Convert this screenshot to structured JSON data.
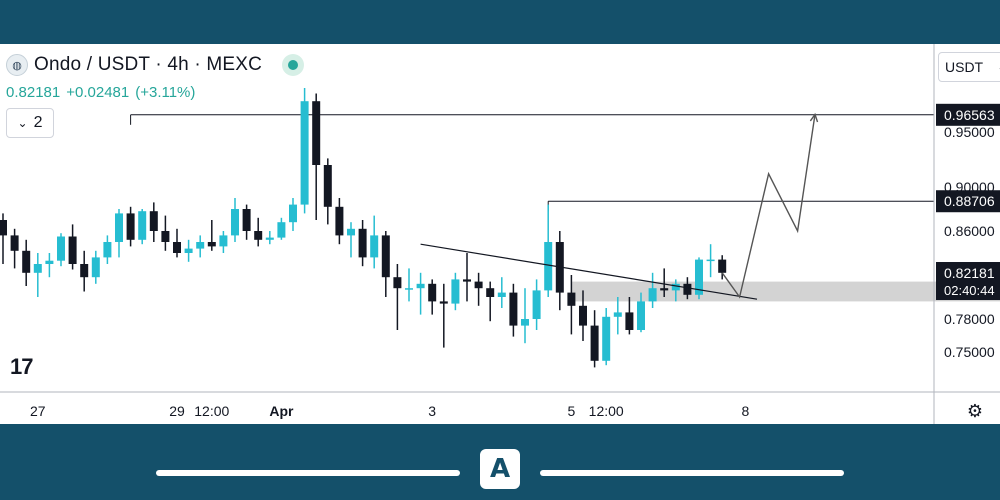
{
  "legend": {
    "title": "Ondo / USDT · 4h · MEXC",
    "last": "0.82181",
    "change": "+0.02481",
    "change_pct": "(+3.11%)",
    "indicator_count": "2"
  },
  "toolbar": {
    "currency": "USDT"
  },
  "brand": {
    "watermark": "17"
  },
  "colors": {
    "up": "#26bdd1",
    "down": "#131722",
    "zone": "#c8c8c8",
    "frame": "#14506a"
  },
  "icons": {
    "symbol": "ondo-logo-icon",
    "collapse": "chevron-down-icon",
    "currency": "chevron-down-icon",
    "settings": "gear-icon",
    "app": "app-logo-icon"
  },
  "chart_data": {
    "type": "candlestick",
    "symbol": "Ondo / USDT",
    "interval": "4h",
    "exchange": "MEXC",
    "ylim": [
      0.73,
      0.98
    ],
    "y_ticks": [
      0.75,
      0.78,
      0.86,
      0.9,
      0.95
    ],
    "y_tick_labels": [
      "0.75000",
      "0.78000",
      "0.86000",
      "0.90000",
      "0.95000"
    ],
    "x_tick_labels": [
      {
        "label": "27",
        "bar": 3
      },
      {
        "label": "29",
        "bar": 15
      },
      {
        "label": "12:00",
        "bar": 18
      },
      {
        "label": "Apr",
        "bar": 24,
        "bold": true
      },
      {
        "label": "3",
        "bar": 37
      },
      {
        "label": "5",
        "bar": 49
      },
      {
        "label": "12:00",
        "bar": 52
      },
      {
        "label": "8",
        "bar": 64
      }
    ],
    "candles": [
      [
        0.87,
        0.876,
        0.83,
        0.856
      ],
      [
        0.856,
        0.862,
        0.826,
        0.842
      ],
      [
        0.842,
        0.852,
        0.81,
        0.822
      ],
      [
        0.822,
        0.84,
        0.8,
        0.83
      ],
      [
        0.83,
        0.84,
        0.818,
        0.833
      ],
      [
        0.833,
        0.858,
        0.828,
        0.855
      ],
      [
        0.855,
        0.866,
        0.825,
        0.83
      ],
      [
        0.83,
        0.842,
        0.805,
        0.818
      ],
      [
        0.818,
        0.842,
        0.812,
        0.836
      ],
      [
        0.836,
        0.856,
        0.83,
        0.85
      ],
      [
        0.85,
        0.88,
        0.836,
        0.876
      ],
      [
        0.876,
        0.882,
        0.846,
        0.852
      ],
      [
        0.852,
        0.88,
        0.848,
        0.878
      ],
      [
        0.878,
        0.886,
        0.85,
        0.86
      ],
      [
        0.86,
        0.874,
        0.842,
        0.85
      ],
      [
        0.85,
        0.862,
        0.836,
        0.84
      ],
      [
        0.84,
        0.852,
        0.832,
        0.844
      ],
      [
        0.844,
        0.856,
        0.836,
        0.85
      ],
      [
        0.85,
        0.87,
        0.842,
        0.846
      ],
      [
        0.846,
        0.86,
        0.84,
        0.856
      ],
      [
        0.856,
        0.89,
        0.85,
        0.88
      ],
      [
        0.88,
        0.884,
        0.852,
        0.86
      ],
      [
        0.86,
        0.872,
        0.846,
        0.852
      ],
      [
        0.852,
        0.86,
        0.848,
        0.854
      ],
      [
        0.854,
        0.872,
        0.852,
        0.868
      ],
      [
        0.868,
        0.89,
        0.86,
        0.884
      ],
      [
        0.884,
        0.99,
        0.876,
        0.978
      ],
      [
        0.978,
        0.985,
        0.87,
        0.92
      ],
      [
        0.92,
        0.926,
        0.866,
        0.882
      ],
      [
        0.882,
        0.89,
        0.848,
        0.856
      ],
      [
        0.856,
        0.868,
        0.836,
        0.862
      ],
      [
        0.862,
        0.87,
        0.828,
        0.836
      ],
      [
        0.836,
        0.874,
        0.826,
        0.856
      ],
      [
        0.856,
        0.86,
        0.8,
        0.818
      ],
      [
        0.818,
        0.83,
        0.77,
        0.808
      ],
      [
        0.808,
        0.826,
        0.796,
        0.808
      ],
      [
        0.808,
        0.822,
        0.784,
        0.812
      ],
      [
        0.812,
        0.816,
        0.784,
        0.796
      ],
      [
        0.796,
        0.812,
        0.754,
        0.794
      ],
      [
        0.794,
        0.822,
        0.788,
        0.816
      ],
      [
        0.816,
        0.84,
        0.796,
        0.814
      ],
      [
        0.814,
        0.822,
        0.792,
        0.808
      ],
      [
        0.808,
        0.814,
        0.778,
        0.8
      ],
      [
        0.8,
        0.818,
        0.79,
        0.804
      ],
      [
        0.804,
        0.812,
        0.764,
        0.774
      ],
      [
        0.774,
        0.808,
        0.758,
        0.78
      ],
      [
        0.78,
        0.816,
        0.77,
        0.806
      ],
      [
        0.806,
        0.884,
        0.8,
        0.85
      ],
      [
        0.85,
        0.86,
        0.788,
        0.804
      ],
      [
        0.804,
        0.82,
        0.766,
        0.792
      ],
      [
        0.792,
        0.806,
        0.76,
        0.774
      ],
      [
        0.774,
        0.788,
        0.736,
        0.742
      ],
      [
        0.742,
        0.79,
        0.738,
        0.782
      ],
      [
        0.782,
        0.8,
        0.766,
        0.786
      ],
      [
        0.786,
        0.8,
        0.766,
        0.77
      ],
      [
        0.77,
        0.804,
        0.768,
        0.796
      ],
      [
        0.796,
        0.822,
        0.79,
        0.808
      ],
      [
        0.808,
        0.826,
        0.8,
        0.806
      ],
      [
        0.806,
        0.816,
        0.796,
        0.812
      ],
      [
        0.812,
        0.818,
        0.798,
        0.802
      ],
      [
        0.802,
        0.836,
        0.798,
        0.834
      ],
      [
        0.834,
        0.848,
        0.818,
        0.834
      ],
      [
        0.834,
        0.838,
        0.816,
        0.822
      ]
    ],
    "price_labels": [
      {
        "value": 0.96563,
        "label": "0.96563"
      },
      {
        "value": 0.88706,
        "label": "0.88706"
      },
      {
        "value": 0.82181,
        "label": "0.82181",
        "sub": "02:40:44"
      }
    ],
    "horizontal_levels": [
      {
        "price": 0.96563,
        "from_bar": 11
      },
      {
        "price": 0.88706,
        "from_bar": 47
      }
    ],
    "trendline": {
      "from": [
        36,
        0.848
      ],
      "to": [
        65,
        0.798
      ]
    },
    "zone": {
      "from_bar": 49,
      "top": 0.814,
      "bottom": 0.796
    },
    "projection": [
      [
        62,
        0.822
      ],
      [
        63.5,
        0.8
      ],
      [
        66,
        0.912
      ],
      [
        68.5,
        0.86
      ],
      [
        70,
        0.966
      ]
    ]
  }
}
